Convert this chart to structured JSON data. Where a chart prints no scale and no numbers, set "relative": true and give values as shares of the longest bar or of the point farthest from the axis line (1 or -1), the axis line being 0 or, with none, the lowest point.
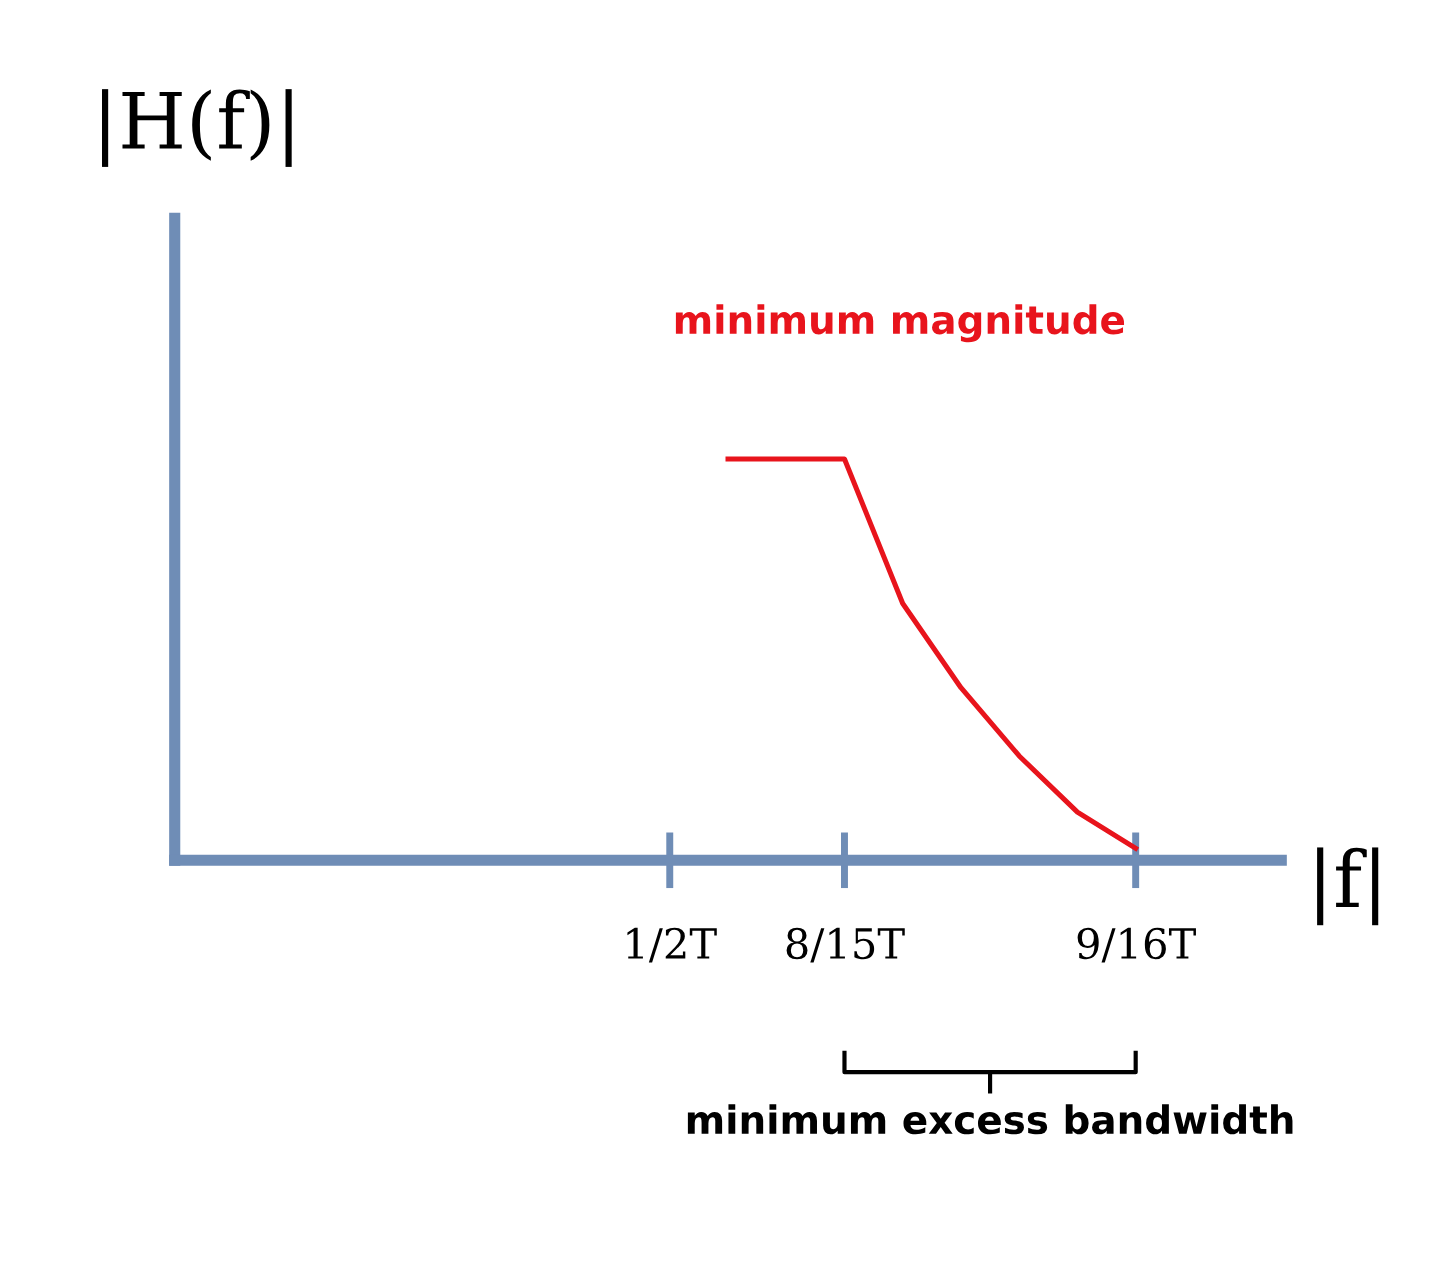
{
  "chart_data": {
    "type": "line",
    "relative": true,
    "ylabel": "|H(f)|",
    "xlabel": "|f|",
    "categories": [
      null,
      null,
      null,
      null,
      null,
      null,
      null,
      null,
      "1/2T",
      null,
      null,
      "8/15T",
      null,
      null,
      null,
      null,
      "9/16T"
    ],
    "series": [
      {
        "color": "#e8141c",
        "values": [
          null,
          null,
          null,
          null,
          null,
          null,
          null,
          null,
          null,
          1,
          1,
          1,
          0.64,
          0.43,
          0.26,
          0.12,
          0.03
        ]
      }
    ],
    "annotations": [
      "minimum magnitude",
      "minimum excess bandwidth"
    ],
    "grid": false,
    "legend": false
  }
}
